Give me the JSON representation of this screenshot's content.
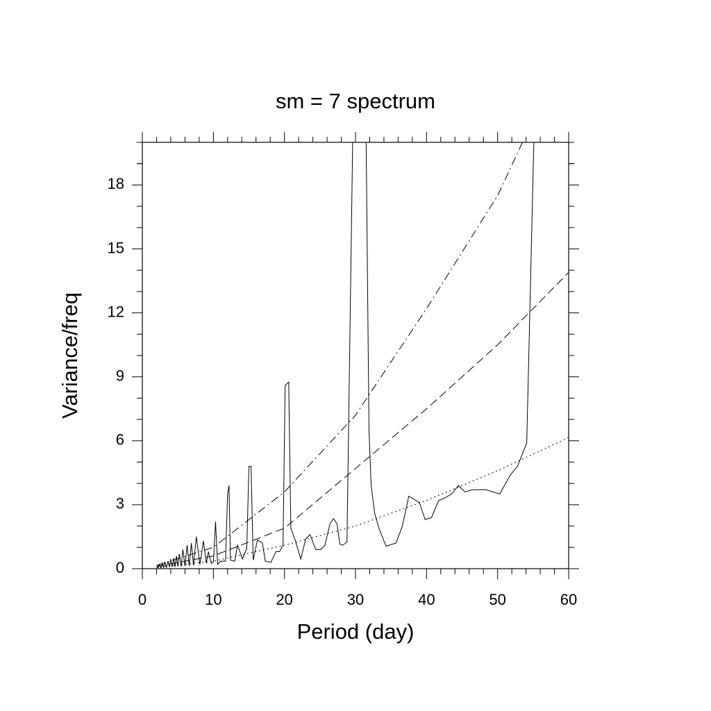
{
  "chart_data": {
    "type": "line",
    "title": "sm = 7 spectrum",
    "x_label": "Period (day)",
    "y_label": "Variance/freq",
    "xlim": [
      0,
      60
    ],
    "xticks": [
      0,
      10,
      20,
      30,
      40,
      50,
      60
    ],
    "ylim": [
      0,
      20
    ],
    "yticks": [
      0,
      3,
      6,
      9,
      12,
      15,
      18
    ],
    "minor_ticks_between": {
      "x": 4,
      "y": 2
    },
    "series": [
      {
        "color": "#000000",
        "style": "solid",
        "x": [
          2.1,
          2.25,
          2.4,
          2.6,
          2.8,
          3.0,
          3.2,
          3.4,
          3.6,
          3.8,
          4.0,
          4.2,
          4.4,
          4.6,
          4.8,
          5.0,
          5.2,
          5.45,
          5.7,
          6.0,
          6.3,
          6.6,
          6.9,
          7.2,
          7.6,
          8.1,
          8.6,
          9.0,
          9.3,
          9.7,
          10.0,
          10.3,
          10.6,
          11.0,
          11.7,
          12.0,
          12.2,
          12.4,
          13.0,
          13.4,
          14.1,
          14.7,
          15.0,
          15.3,
          15.6,
          16.2,
          16.9,
          17.3,
          18.1,
          18.8,
          19.3,
          19.8,
          20.1,
          20.6,
          20.9,
          21.5,
          22.3,
          23.0,
          23.6,
          24.4,
          25.1,
          25.7,
          26.4,
          26.9,
          27.4,
          27.8,
          28.2,
          28.8,
          29.6,
          31.5,
          31.9,
          32.2,
          32.7,
          33.3,
          34.3,
          35.7,
          36.6,
          37.5,
          39.0,
          39.8,
          40.7,
          41.7,
          42.5,
          43.5,
          44.5,
          45.4,
          46.4,
          48.4,
          50.3,
          51.8,
          52.8,
          54.1,
          55.1
        ],
        "values": [
          0.15,
          0.05,
          0.2,
          0.05,
          0.25,
          0.05,
          0.3,
          0.05,
          0.35,
          0.08,
          0.45,
          0.08,
          0.5,
          0.08,
          0.6,
          0.1,
          0.7,
          0.1,
          0.9,
          0.12,
          1.1,
          0.12,
          1.2,
          0.15,
          1.5,
          0.2,
          1.3,
          0.25,
          0.8,
          0.25,
          0.3,
          2.2,
          0.2,
          0.35,
          0.35,
          3.5,
          3.9,
          0.4,
          0.35,
          1.1,
          0.45,
          0.95,
          4.8,
          4.8,
          0.4,
          1.35,
          1.2,
          0.35,
          0.3,
          0.8,
          0.8,
          1.1,
          8.6,
          8.75,
          1.9,
          1.35,
          0.45,
          1.4,
          1.6,
          0.9,
          0.9,
          1.1,
          2.1,
          2.35,
          2.1,
          1.15,
          1.1,
          1.25,
          20,
          20,
          6.5,
          3.9,
          2.6,
          1.9,
          1.05,
          1.2,
          2.0,
          3.4,
          3.1,
          2.3,
          2.4,
          3.2,
          3.3,
          3.5,
          3.9,
          3.6,
          3.7,
          3.7,
          3.5,
          4.4,
          4.8,
          5.9,
          20
        ]
      },
      {
        "color": "#000000",
        "style": "dotted",
        "x": [
          2,
          10,
          20,
          30,
          40,
          50,
          60
        ],
        "values": [
          0.05,
          0.35,
          1.1,
          2.0,
          3.2,
          4.6,
          6.15
        ]
      },
      {
        "color": "#000000",
        "style": "dashed",
        "x": [
          2,
          10,
          20,
          30,
          40,
          50,
          60
        ],
        "values": [
          0.1,
          0.6,
          1.9,
          4.7,
          7.5,
          10.5,
          13.9
        ]
      },
      {
        "color": "#000000",
        "style": "dashdot",
        "x": [
          2,
          10,
          20,
          30,
          40,
          50,
          53.5
        ],
        "values": [
          0.15,
          1.0,
          3.6,
          7.2,
          12.2,
          17.5,
          20
        ]
      }
    ]
  }
}
